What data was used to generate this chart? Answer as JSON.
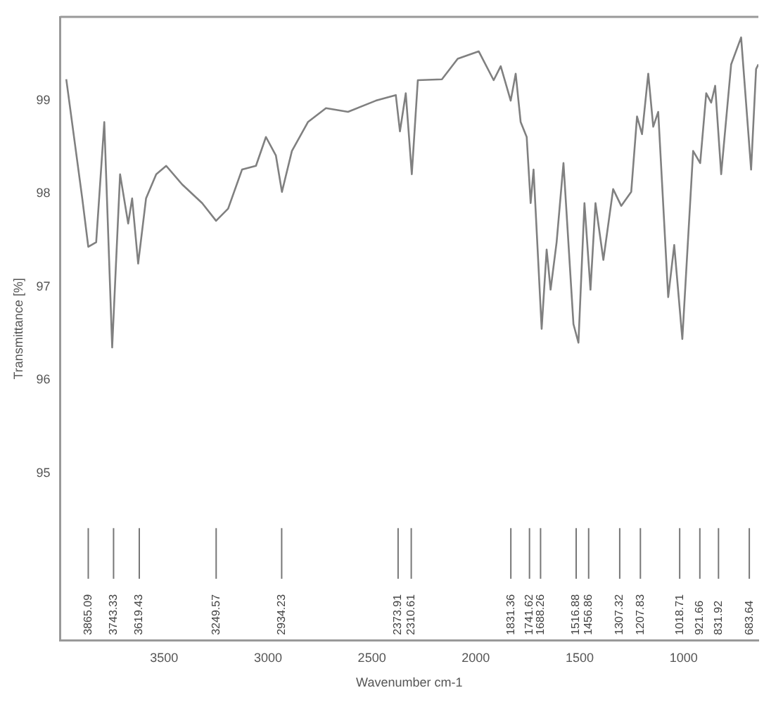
{
  "chart_data": {
    "type": "line",
    "xlabel": "Wavenumber cm-1",
    "ylabel": "Transmittance [%]",
    "xlim": [
      4000,
      640
    ],
    "xticks": [
      3500,
      3000,
      2500,
      2000,
      1500,
      1000
    ],
    "ylim": [
      93.2,
      99.9
    ],
    "yticks": [
      95,
      96,
      97,
      98,
      99
    ],
    "grid": false,
    "legend": false,
    "marker": "none",
    "line_style": "solid",
    "series": [
      {
        "color": "#808080",
        "x": [
          3971,
          3894,
          3865,
          3827,
          3788,
          3750,
          3712,
          3673,
          3654,
          3625,
          3587,
          3538,
          3490,
          3413,
          3317,
          3250,
          3192,
          3125,
          3058,
          3010,
          2962,
          2933,
          2885,
          2808,
          2721,
          2615,
          2481,
          2385,
          2365,
          2337,
          2308,
          2279,
          2163,
          2087,
          1986,
          1914,
          1880,
          1832,
          1808,
          1784,
          1755,
          1736,
          1722,
          1683,
          1659,
          1640,
          1611,
          1578,
          1530,
          1506,
          1477,
          1448,
          1424,
          1386,
          1339,
          1300,
          1252,
          1224,
          1200,
          1170,
          1146,
          1122,
          1074,
          1045,
          1006,
          954,
          920,
          891,
          867,
          848,
          819,
          771,
          723,
          675,
          651,
          640
        ],
        "values": [
          99.23,
          97.95,
          97.43,
          97.48,
          98.77,
          96.35,
          98.21,
          97.68,
          97.95,
          97.25,
          97.95,
          98.21,
          98.3,
          98.1,
          97.9,
          97.71,
          97.84,
          98.26,
          98.3,
          98.61,
          98.41,
          98.02,
          98.46,
          98.77,
          98.92,
          98.88,
          99.0,
          99.06,
          98.67,
          99.08,
          98.21,
          99.22,
          99.23,
          99.45,
          99.53,
          99.22,
          99.37,
          99.0,
          99.29,
          98.77,
          98.61,
          97.9,
          98.26,
          96.55,
          97.4,
          96.97,
          97.48,
          98.33,
          96.6,
          96.4,
          97.9,
          96.97,
          97.9,
          97.29,
          98.05,
          97.87,
          98.02,
          98.83,
          98.64,
          99.29,
          98.72,
          98.88,
          96.89,
          97.45,
          96.44,
          98.46,
          98.33,
          99.08,
          98.98,
          99.16,
          98.21,
          99.39,
          99.68,
          98.26,
          99.34,
          99.39
        ]
      }
    ],
    "ref_lines": [
      {
        "axis": "x",
        "value": 3865.09,
        "label": "3865.09"
      },
      {
        "axis": "x",
        "value": 3743.33,
        "label": "3743.33"
      },
      {
        "axis": "x",
        "value": 3619.43,
        "label": "3619.43"
      },
      {
        "axis": "x",
        "value": 3249.57,
        "label": "3249.57"
      },
      {
        "axis": "x",
        "value": 2934.23,
        "label": "2934.23"
      },
      {
        "axis": "x",
        "value": 2373.91,
        "label": "2373.91"
      },
      {
        "axis": "x",
        "value": 2310.61,
        "label": "2310.61"
      },
      {
        "axis": "x",
        "value": 1831.36,
        "label": "1831.36"
      },
      {
        "axis": "x",
        "value": 1741.62,
        "label": "1741.62"
      },
      {
        "axis": "x",
        "value": 1688.26,
        "label": "1688.26"
      },
      {
        "axis": "x",
        "value": 1516.88,
        "label": "1516.88"
      },
      {
        "axis": "x",
        "value": 1456.86,
        "label": "1456.86"
      },
      {
        "axis": "x",
        "value": 1307.32,
        "label": "1307.32"
      },
      {
        "axis": "x",
        "value": 1207.83,
        "label": "1207.83"
      },
      {
        "axis": "x",
        "value": 1018.71,
        "label": "1018.71"
      },
      {
        "axis": "x",
        "value": 921.66,
        "label": "921.66"
      },
      {
        "axis": "x",
        "value": 831.92,
        "label": "831.92"
      },
      {
        "axis": "x",
        "value": 683.64,
        "label": "683.64"
      }
    ]
  }
}
